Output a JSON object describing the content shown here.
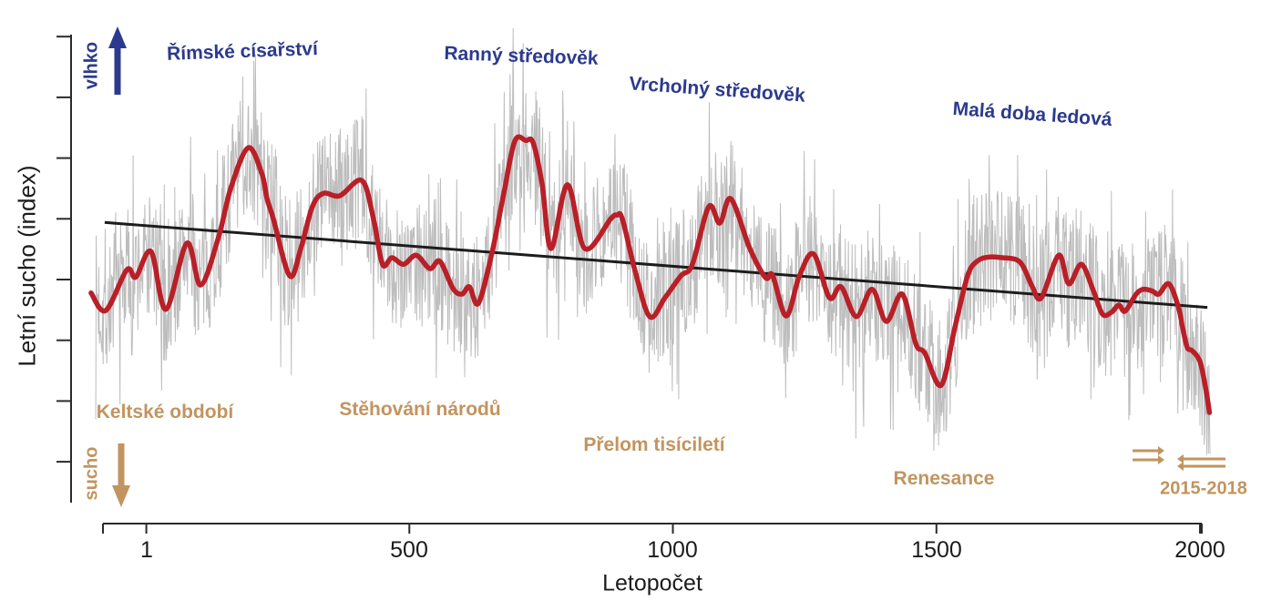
{
  "axes": {
    "y_label": "Letní sucho (index)",
    "x_label": "Letopočet",
    "x_ticks": [
      "1",
      "500",
      "1000",
      "1500",
      "2000"
    ],
    "x_tick_years": [
      1,
      500,
      1000,
      1500,
      2000
    ],
    "y_tick_values": [
      -3,
      -2,
      -1,
      0,
      1,
      2,
      3,
      4
    ]
  },
  "direction_indicators": {
    "wet_label": "vlhko",
    "dry_label": "sucho"
  },
  "annotations": {
    "wet_periods": [
      "Římské císařství",
      "Ranný středověk",
      "Vrcholný středověk",
      "Malá doba ledová"
    ],
    "dry_periods": [
      "Keltské období",
      "Stěhování národů",
      "Přelom tisíciletí",
      "Renesance"
    ],
    "event_label": "2015-2018"
  },
  "colors": {
    "smoothed_line": "#b91f27",
    "annual_line": "#bdbdbd",
    "trend_line": "#1c1c1c",
    "wet_color": "#2b3a8e",
    "dry_color": "#c2945f",
    "axis_color": "#2b2b2b"
  },
  "chart_data": {
    "type": "line",
    "title": "",
    "xlabel": "Letopočet",
    "ylabel": "Letní sucho (index)",
    "x_range": [
      -100,
      2020
    ],
    "x_ticks": [
      1,
      500,
      1000,
      1500,
      2000
    ],
    "y_axis": "unlabeled index scale, 8 ticks, higher = wetter (vlhko), lower = drier (sucho)",
    "series": [
      {
        "name": "annual summer drought index (noisy reconstruction)",
        "style": "thin gray",
        "note": "annual values = smoothed series + high-frequency noise; regenerated deterministically",
        "noise_seed": 7,
        "noise_amp": 2.2,
        "noise_spike_prob": 0.12,
        "noise_spike_gain": 1.85,
        "year_start": -95,
        "year_end": 2020
      },
      {
        "name": "smoothed (low-pass) summer drought index",
        "style": "thick red",
        "points": [
          [
            -104,
            -0.22
          ],
          [
            -76,
            -0.51
          ],
          [
            -36,
            0.16
          ],
          [
            -19,
            0.04
          ],
          [
            10,
            0.46
          ],
          [
            38,
            -0.49
          ],
          [
            78,
            0.6
          ],
          [
            104,
            -0.09
          ],
          [
            138,
            0.7
          ],
          [
            161,
            1.5
          ],
          [
            194,
            2.17
          ],
          [
            220,
            1.75
          ],
          [
            230,
            1.33
          ],
          [
            242,
            1.0
          ],
          [
            273,
            0.06
          ],
          [
            294,
            0.51
          ],
          [
            316,
            1.2
          ],
          [
            337,
            1.42
          ],
          [
            368,
            1.38
          ],
          [
            410,
            1.63
          ],
          [
            432,
            1.0
          ],
          [
            449,
            0.25
          ],
          [
            467,
            0.36
          ],
          [
            489,
            0.25
          ],
          [
            513,
            0.4
          ],
          [
            539,
            0.18
          ],
          [
            558,
            0.3
          ],
          [
            583,
            -0.15
          ],
          [
            600,
            -0.24
          ],
          [
            614,
            -0.12
          ],
          [
            631,
            -0.39
          ],
          [
            657,
            0.45
          ],
          [
            679,
            1.41
          ],
          [
            700,
            2.28
          ],
          [
            721,
            2.29
          ],
          [
            735,
            2.25
          ],
          [
            752,
            1.56
          ],
          [
            769,
            0.51
          ],
          [
            800,
            1.56
          ],
          [
            833,
            0.51
          ],
          [
            882,
            1.0
          ],
          [
            894,
            1.06
          ],
          [
            904,
            1.0
          ],
          [
            928,
            0.15
          ],
          [
            956,
            -0.61
          ],
          [
            985,
            -0.3
          ],
          [
            1015,
            0.06
          ],
          [
            1037,
            0.25
          ],
          [
            1068,
            1.2
          ],
          [
            1089,
            0.93
          ],
          [
            1110,
            1.33
          ],
          [
            1146,
            0.51
          ],
          [
            1176,
            0.03
          ],
          [
            1189,
            0.07
          ],
          [
            1215,
            -0.6
          ],
          [
            1240,
            0.06
          ],
          [
            1267,
            0.42
          ],
          [
            1297,
            -0.3
          ],
          [
            1319,
            -0.12
          ],
          [
            1348,
            -0.61
          ],
          [
            1378,
            -0.16
          ],
          [
            1405,
            -0.69
          ],
          [
            1435,
            -0.24
          ],
          [
            1461,
            -1.06
          ],
          [
            1478,
            -1.21
          ],
          [
            1509,
            -1.74
          ],
          [
            1535,
            -0.79
          ],
          [
            1559,
            0.06
          ],
          [
            1577,
            0.3
          ],
          [
            1599,
            0.37
          ],
          [
            1625,
            0.36
          ],
          [
            1651,
            0.33
          ],
          [
            1665,
            0.21
          ],
          [
            1682,
            -0.12
          ],
          [
            1699,
            -0.3
          ],
          [
            1732,
            0.4
          ],
          [
            1751,
            -0.07
          ],
          [
            1775,
            0.25
          ],
          [
            1798,
            -0.19
          ],
          [
            1815,
            -0.57
          ],
          [
            1832,
            -0.54
          ],
          [
            1846,
            -0.42
          ],
          [
            1858,
            -0.52
          ],
          [
            1879,
            -0.24
          ],
          [
            1893,
            -0.16
          ],
          [
            1910,
            -0.19
          ],
          [
            1922,
            -0.24
          ],
          [
            1941,
            -0.07
          ],
          [
            1959,
            -0.45
          ],
          [
            1967,
            -0.79
          ],
          [
            1976,
            -1.12
          ],
          [
            1985,
            -1.17
          ],
          [
            2000,
            -1.35
          ],
          [
            2011,
            -1.8
          ],
          [
            2018,
            -2.19
          ]
        ]
      },
      {
        "name": "linear trend (drying)",
        "style": "black straight line",
        "points": [
          [
            -78,
            0.94
          ],
          [
            2014,
            -0.46
          ]
        ]
      }
    ]
  }
}
